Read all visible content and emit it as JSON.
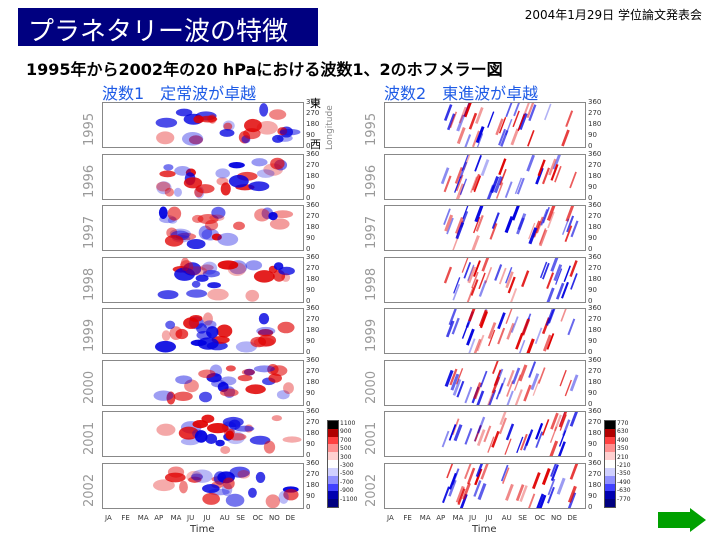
{
  "slide": {
    "title": "プラネタリー波の特徴",
    "meta": "2004年1月29日 学位論文発表会",
    "subtitle": "1995年から2002年の20 hPaにおける波数1、2のホフメラー図",
    "left_heading": "波数1　定常波が卓越",
    "right_heading": "波数2　東進波が卓越",
    "east_label": "東",
    "west_label": "西"
  },
  "years": [
    "1995",
    "1996",
    "1997",
    "1998",
    "1999",
    "2000",
    "2001",
    "2002"
  ],
  "lon_ticks": [
    "360",
    "270",
    "180",
    "90",
    "0"
  ],
  "months": [
    "JA",
    "FE",
    "MA",
    "AP",
    "MA",
    "JU",
    "JU",
    "AU",
    "SE",
    "OC",
    "NO",
    "DE"
  ],
  "x_axis_title": "Time",
  "y_axis_title": "Longitude",
  "colorbar_left": {
    "labels": [
      "1100",
      "900",
      "700",
      "500",
      "300",
      "-300",
      "-500",
      "-700",
      "-900",
      "-1100"
    ]
  },
  "colorbar_right": {
    "labels": [
      "770",
      "630",
      "490",
      "350",
      "210",
      "-210",
      "-350",
      "-490",
      "-630",
      "-770"
    ]
  },
  "colors": {
    "title_bg": "#000080",
    "heading": "#1e5be6",
    "next_arrow": "#00a000",
    "positive": "#e00000",
    "negative": "#0000e0"
  }
}
